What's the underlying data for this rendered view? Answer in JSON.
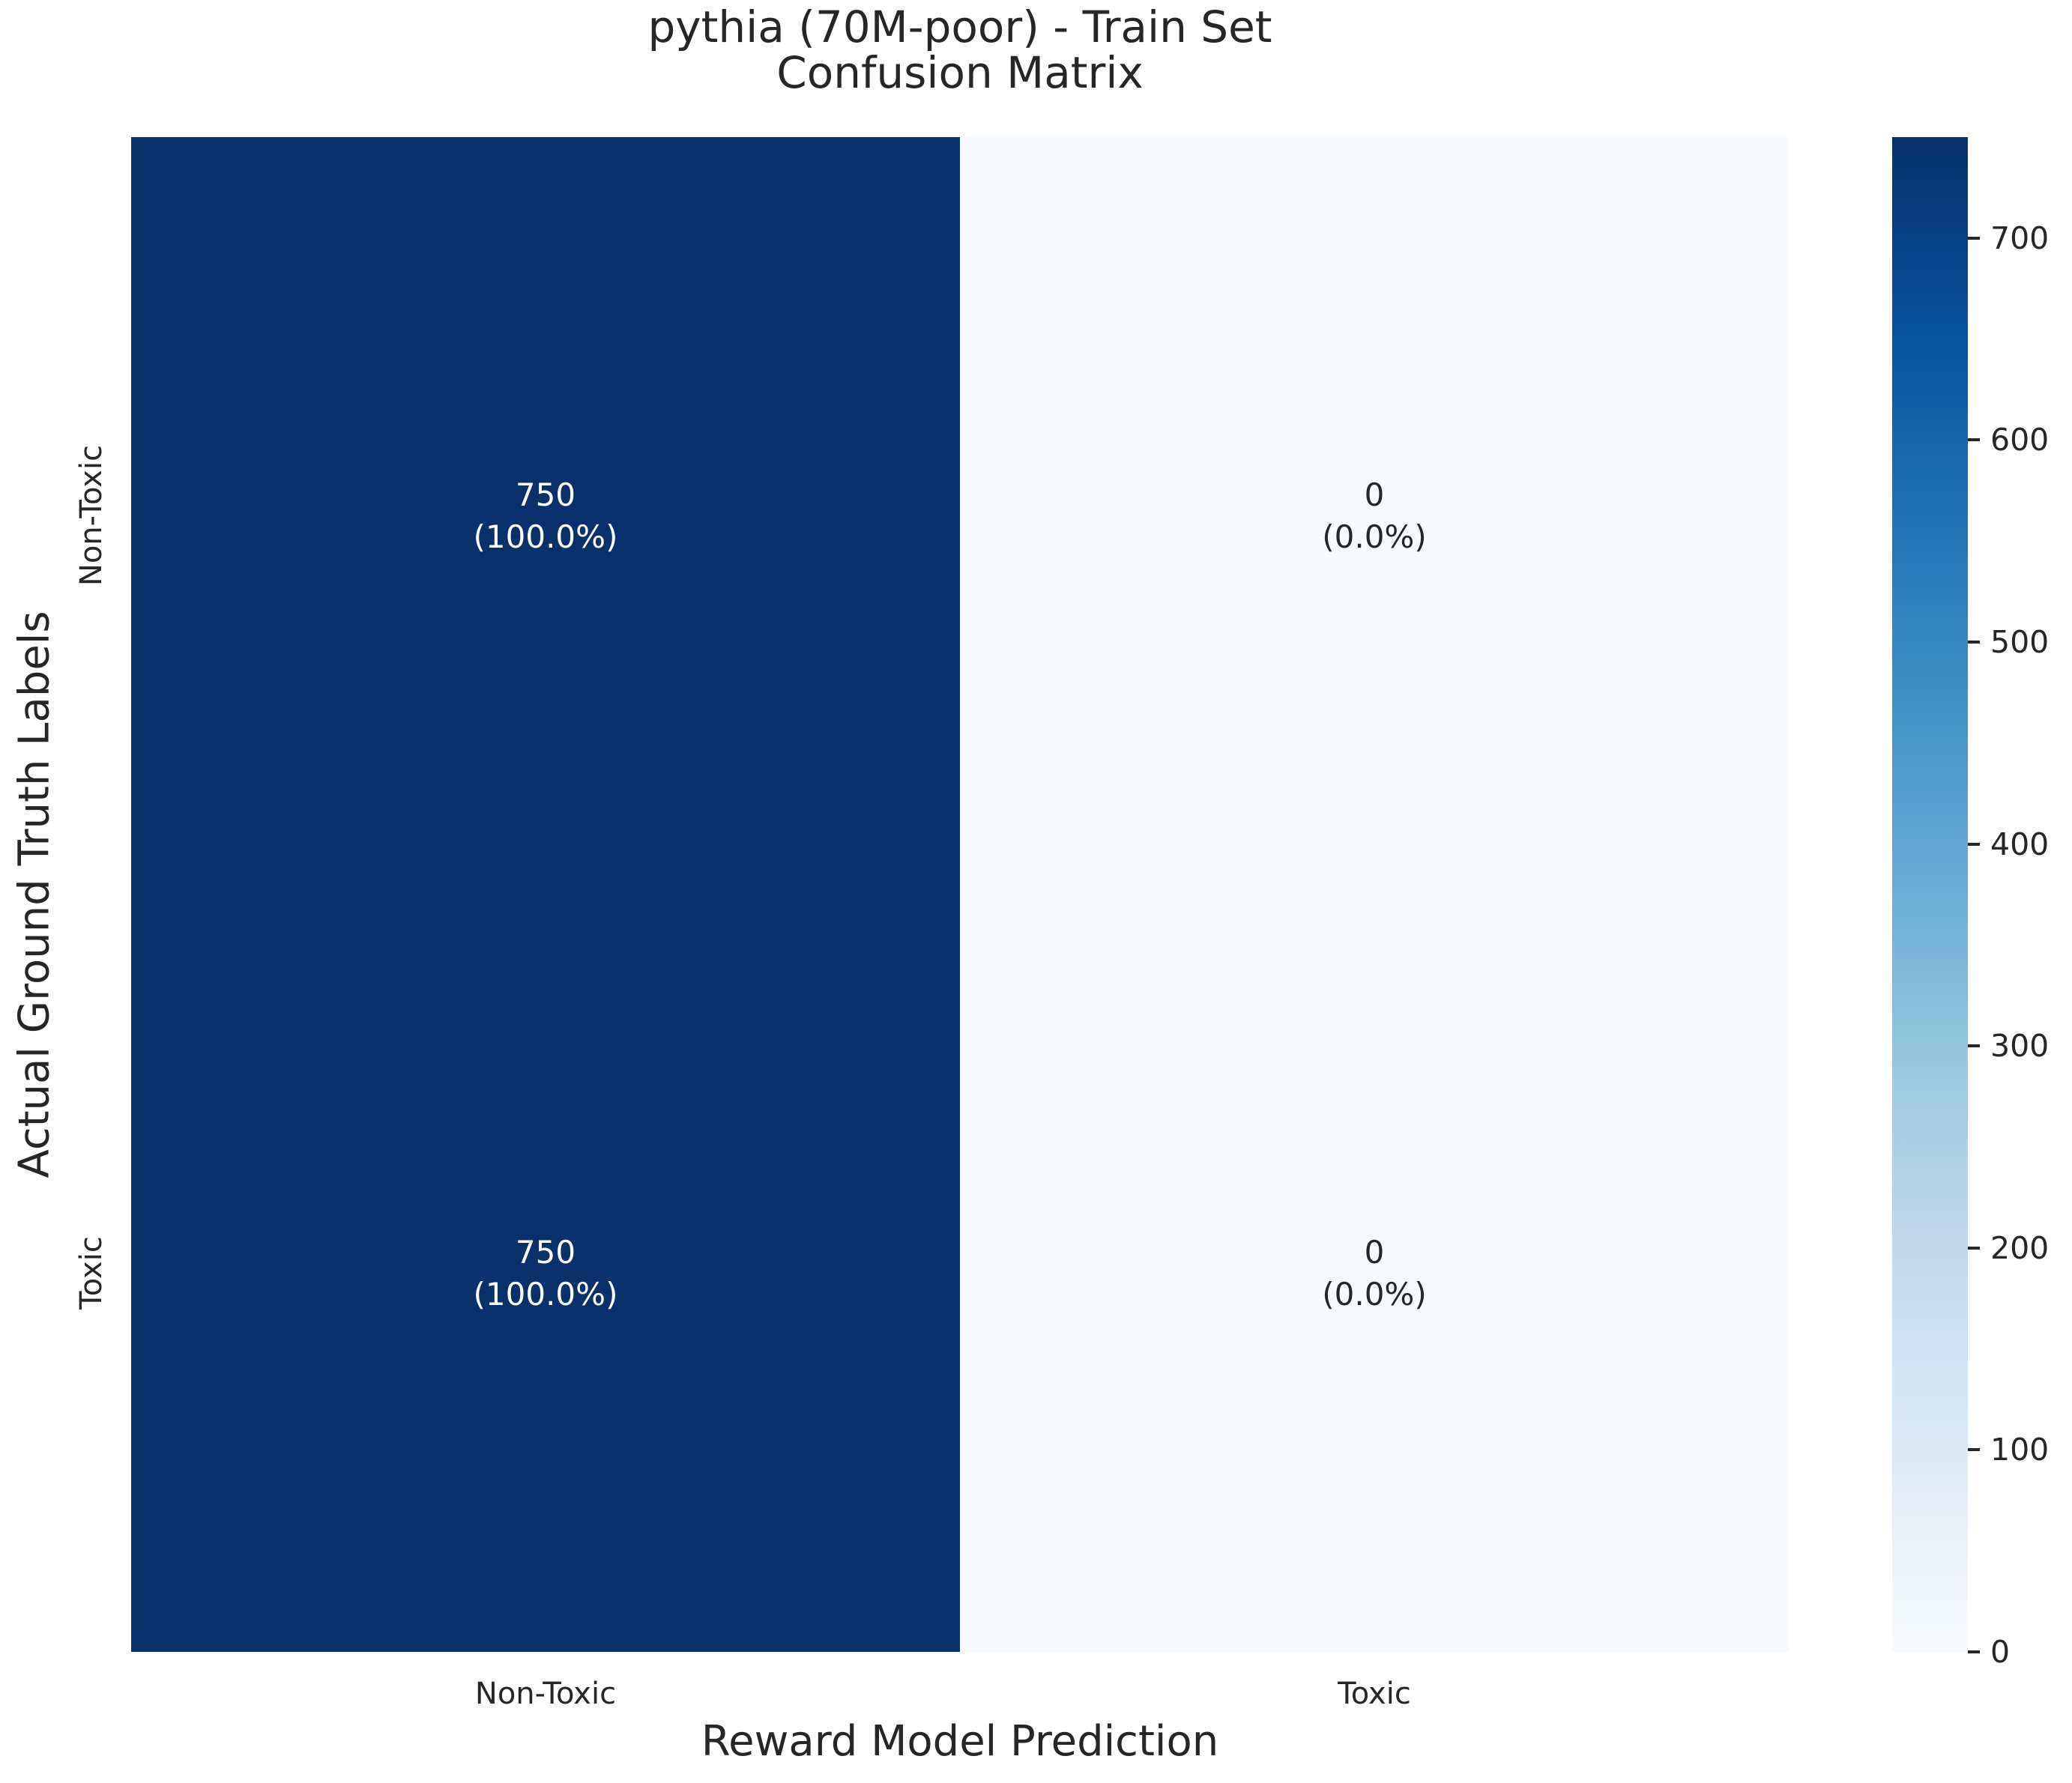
{
  "title": {
    "line1": "pythia (70M-poor) - Train Set",
    "line2": "Confusion Matrix"
  },
  "axes": {
    "xlabel": "Reward Model Prediction",
    "ylabel": "Actual Ground Truth Labels",
    "xticklabels": [
      "Non-Toxic",
      "Toxic"
    ],
    "yticklabels": [
      "Non-Toxic",
      "Toxic"
    ]
  },
  "colors": {
    "background": "#ffffff",
    "text": "#262626",
    "cell_dark": "#08306b",
    "cell_light": "#f7fbff",
    "annot_on_dark": "#ffffff",
    "annot_on_light": "#262626"
  },
  "chart_data": {
    "type": "heatmap",
    "title": "pythia (70M-poor) - Train Set\nConfusion Matrix",
    "xlabel": "Reward Model Prediction",
    "ylabel": "Actual Ground Truth Labels",
    "x_categories": [
      "Non-Toxic",
      "Toxic"
    ],
    "y_categories": [
      "Non-Toxic",
      "Toxic"
    ],
    "matrix": [
      [
        750,
        0
      ],
      [
        750,
        0
      ]
    ],
    "row_percentages": [
      [
        "100.0%",
        "0.0%"
      ],
      [
        "100.0%",
        "0.0%"
      ]
    ],
    "grid": false,
    "legend": false,
    "cells": [
      {
        "row": "Non-Toxic",
        "col": "Non-Toxic",
        "count": "750",
        "percent": "(100.0%)",
        "bg": "#08306b",
        "fg": "#ffffff"
      },
      {
        "row": "Non-Toxic",
        "col": "Toxic",
        "count": "0",
        "percent": "(0.0%)",
        "bg": "#f7fbff",
        "fg": "#262626"
      },
      {
        "row": "Toxic",
        "col": "Non-Toxic",
        "count": "750",
        "percent": "(100.0%)",
        "bg": "#08306b",
        "fg": "#ffffff"
      },
      {
        "row": "Toxic",
        "col": "Toxic",
        "count": "0",
        "percent": "(0.0%)",
        "bg": "#f7fbff",
        "fg": "#262626"
      }
    ],
    "colorbar": {
      "vmin": 0,
      "vmax": 750,
      "ticks": [
        0,
        100,
        200,
        300,
        400,
        500,
        600,
        700
      ],
      "colormap": "Blues",
      "stops": [
        "#f7fbff",
        "#deebf7",
        "#c6dbef",
        "#9ecae1",
        "#6baed6",
        "#4292c6",
        "#2171b5",
        "#08519c",
        "#08306b"
      ]
    }
  }
}
